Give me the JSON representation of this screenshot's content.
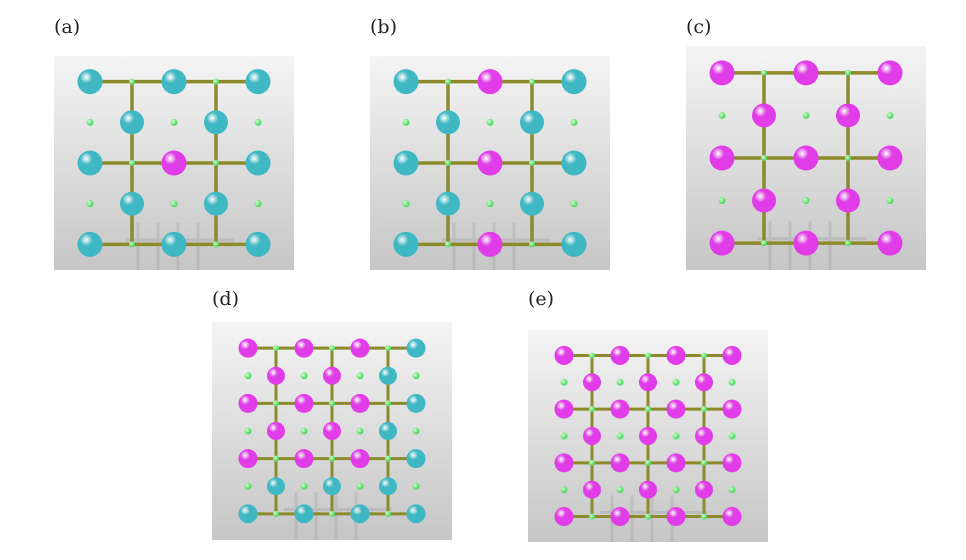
{
  "panels": [
    {
      "label": "(a)",
      "rows": [
        {
          "type": "big",
          "atoms": [
            "cyan",
            "cyan",
            "cyan"
          ]
        },
        {
          "type": "mid",
          "atoms": [
            "cyan",
            "cyan"
          ]
        },
        {
          "type": "big",
          "atoms": [
            "cyan",
            "magenta",
            "cyan"
          ]
        },
        {
          "type": "mid",
          "atoms": [
            "cyan",
            "cyan"
          ]
        },
        {
          "type": "big",
          "atoms": [
            "cyan",
            "cyan",
            "cyan"
          ]
        }
      ]
    },
    {
      "label": "(b)",
      "rows": [
        {
          "type": "big",
          "atoms": [
            "cyan",
            "magenta",
            "cyan"
          ]
        },
        {
          "type": "mid",
          "atoms": [
            "cyan",
            "cyan"
          ]
        },
        {
          "type": "big",
          "atoms": [
            "cyan",
            "magenta",
            "cyan"
          ]
        },
        {
          "type": "mid",
          "atoms": [
            "cyan",
            "cyan"
          ]
        },
        {
          "type": "big",
          "atoms": [
            "cyan",
            "magenta",
            "cyan"
          ]
        }
      ]
    },
    {
      "label": "(c)",
      "rows": [
        {
          "type": "big",
          "atoms": [
            "magenta",
            "magenta",
            "magenta"
          ]
        },
        {
          "type": "mid",
          "atoms": [
            "magenta",
            "magenta"
          ]
        },
        {
          "type": "big",
          "atoms": [
            "magenta",
            "magenta",
            "magenta"
          ]
        },
        {
          "type": "mid",
          "atoms": [
            "magenta",
            "magenta"
          ]
        },
        {
          "type": "big",
          "atoms": [
            "magenta",
            "magenta",
            "magenta"
          ]
        }
      ]
    },
    {
      "label": "(d)",
      "rows": [
        {
          "type": "big",
          "atoms": [
            "magenta",
            "magenta",
            "magenta",
            "cyan"
          ]
        },
        {
          "type": "mid",
          "atoms": [
            "magenta",
            "magenta",
            "cyan"
          ]
        },
        {
          "type": "big",
          "atoms": [
            "magenta",
            "magenta",
            "magenta",
            "cyan"
          ]
        },
        {
          "type": "mid",
          "atoms": [
            "magenta",
            "magenta",
            "cyan"
          ]
        },
        {
          "type": "big",
          "atoms": [
            "magenta",
            "magenta",
            "magenta",
            "cyan"
          ]
        },
        {
          "type": "mid",
          "atoms": [
            "cyan",
            "cyan",
            "cyan"
          ]
        },
        {
          "type": "big",
          "atoms": [
            "cyan",
            "cyan",
            "cyan",
            "cyan"
          ]
        }
      ]
    },
    {
      "label": "(e)",
      "rows": [
        {
          "type": "big",
          "atoms": [
            "magenta",
            "magenta",
            "magenta",
            "magenta"
          ]
        },
        {
          "type": "mid",
          "atoms": [
            "magenta",
            "magenta",
            "magenta"
          ]
        },
        {
          "type": "big",
          "atoms": [
            "magenta",
            "magenta",
            "magenta",
            "magenta"
          ]
        },
        {
          "type": "mid",
          "atoms": [
            "magenta",
            "magenta",
            "magenta"
          ]
        },
        {
          "type": "big",
          "atoms": [
            "magenta",
            "magenta",
            "magenta",
            "magenta"
          ]
        },
        {
          "type": "mid",
          "atoms": [
            "magenta",
            "magenta",
            "magenta"
          ]
        },
        {
          "type": "big",
          "atoms": [
            "magenta",
            "magenta",
            "magenta",
            "magenta"
          ]
        }
      ]
    }
  ],
  "colors": {
    "cyan": "#3fb8c4",
    "magenta": "#e03ce8",
    "bond": "#8c8a2a",
    "small_atom": "#3ed24f",
    "background_top": "#f4f4f4",
    "background_bottom": "#c6c6c6"
  }
}
